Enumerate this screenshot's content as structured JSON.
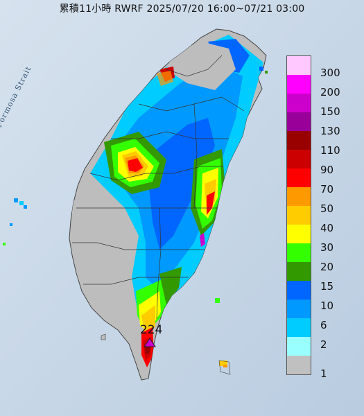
{
  "title": "累積11小時 RWRF 2025/07/20 16:00~07/21 03:00",
  "strait_label": "Formosa Strait",
  "max_value_label": "224",
  "max_marker_icon": "triangle-marker",
  "legend": {
    "items": [
      {
        "label": "300",
        "color": "#ffc8ff"
      },
      {
        "label": "200",
        "color": "#ff00ff"
      },
      {
        "label": "150",
        "color": "#cc00cc"
      },
      {
        "label": "130",
        "color": "#990099"
      },
      {
        "label": "110",
        "color": "#990000"
      },
      {
        "label": "90",
        "color": "#cc0000"
      },
      {
        "label": "70",
        "color": "#ff0000"
      },
      {
        "label": "50",
        "color": "#ff9900"
      },
      {
        "label": "40",
        "color": "#ffcc00"
      },
      {
        "label": "30",
        "color": "#ffff00"
      },
      {
        "label": "20",
        "color": "#33ff00"
      },
      {
        "label": "15",
        "color": "#339900"
      },
      {
        "label": "10",
        "color": "#0066ff"
      },
      {
        "label": "6",
        "color": "#0099ff"
      },
      {
        "label": "2",
        "color": "#00ccff"
      },
      {
        "label": "",
        "color": "#99ffff"
      },
      {
        "label": "1",
        "color": "#c0c0c0"
      }
    ]
  }
}
